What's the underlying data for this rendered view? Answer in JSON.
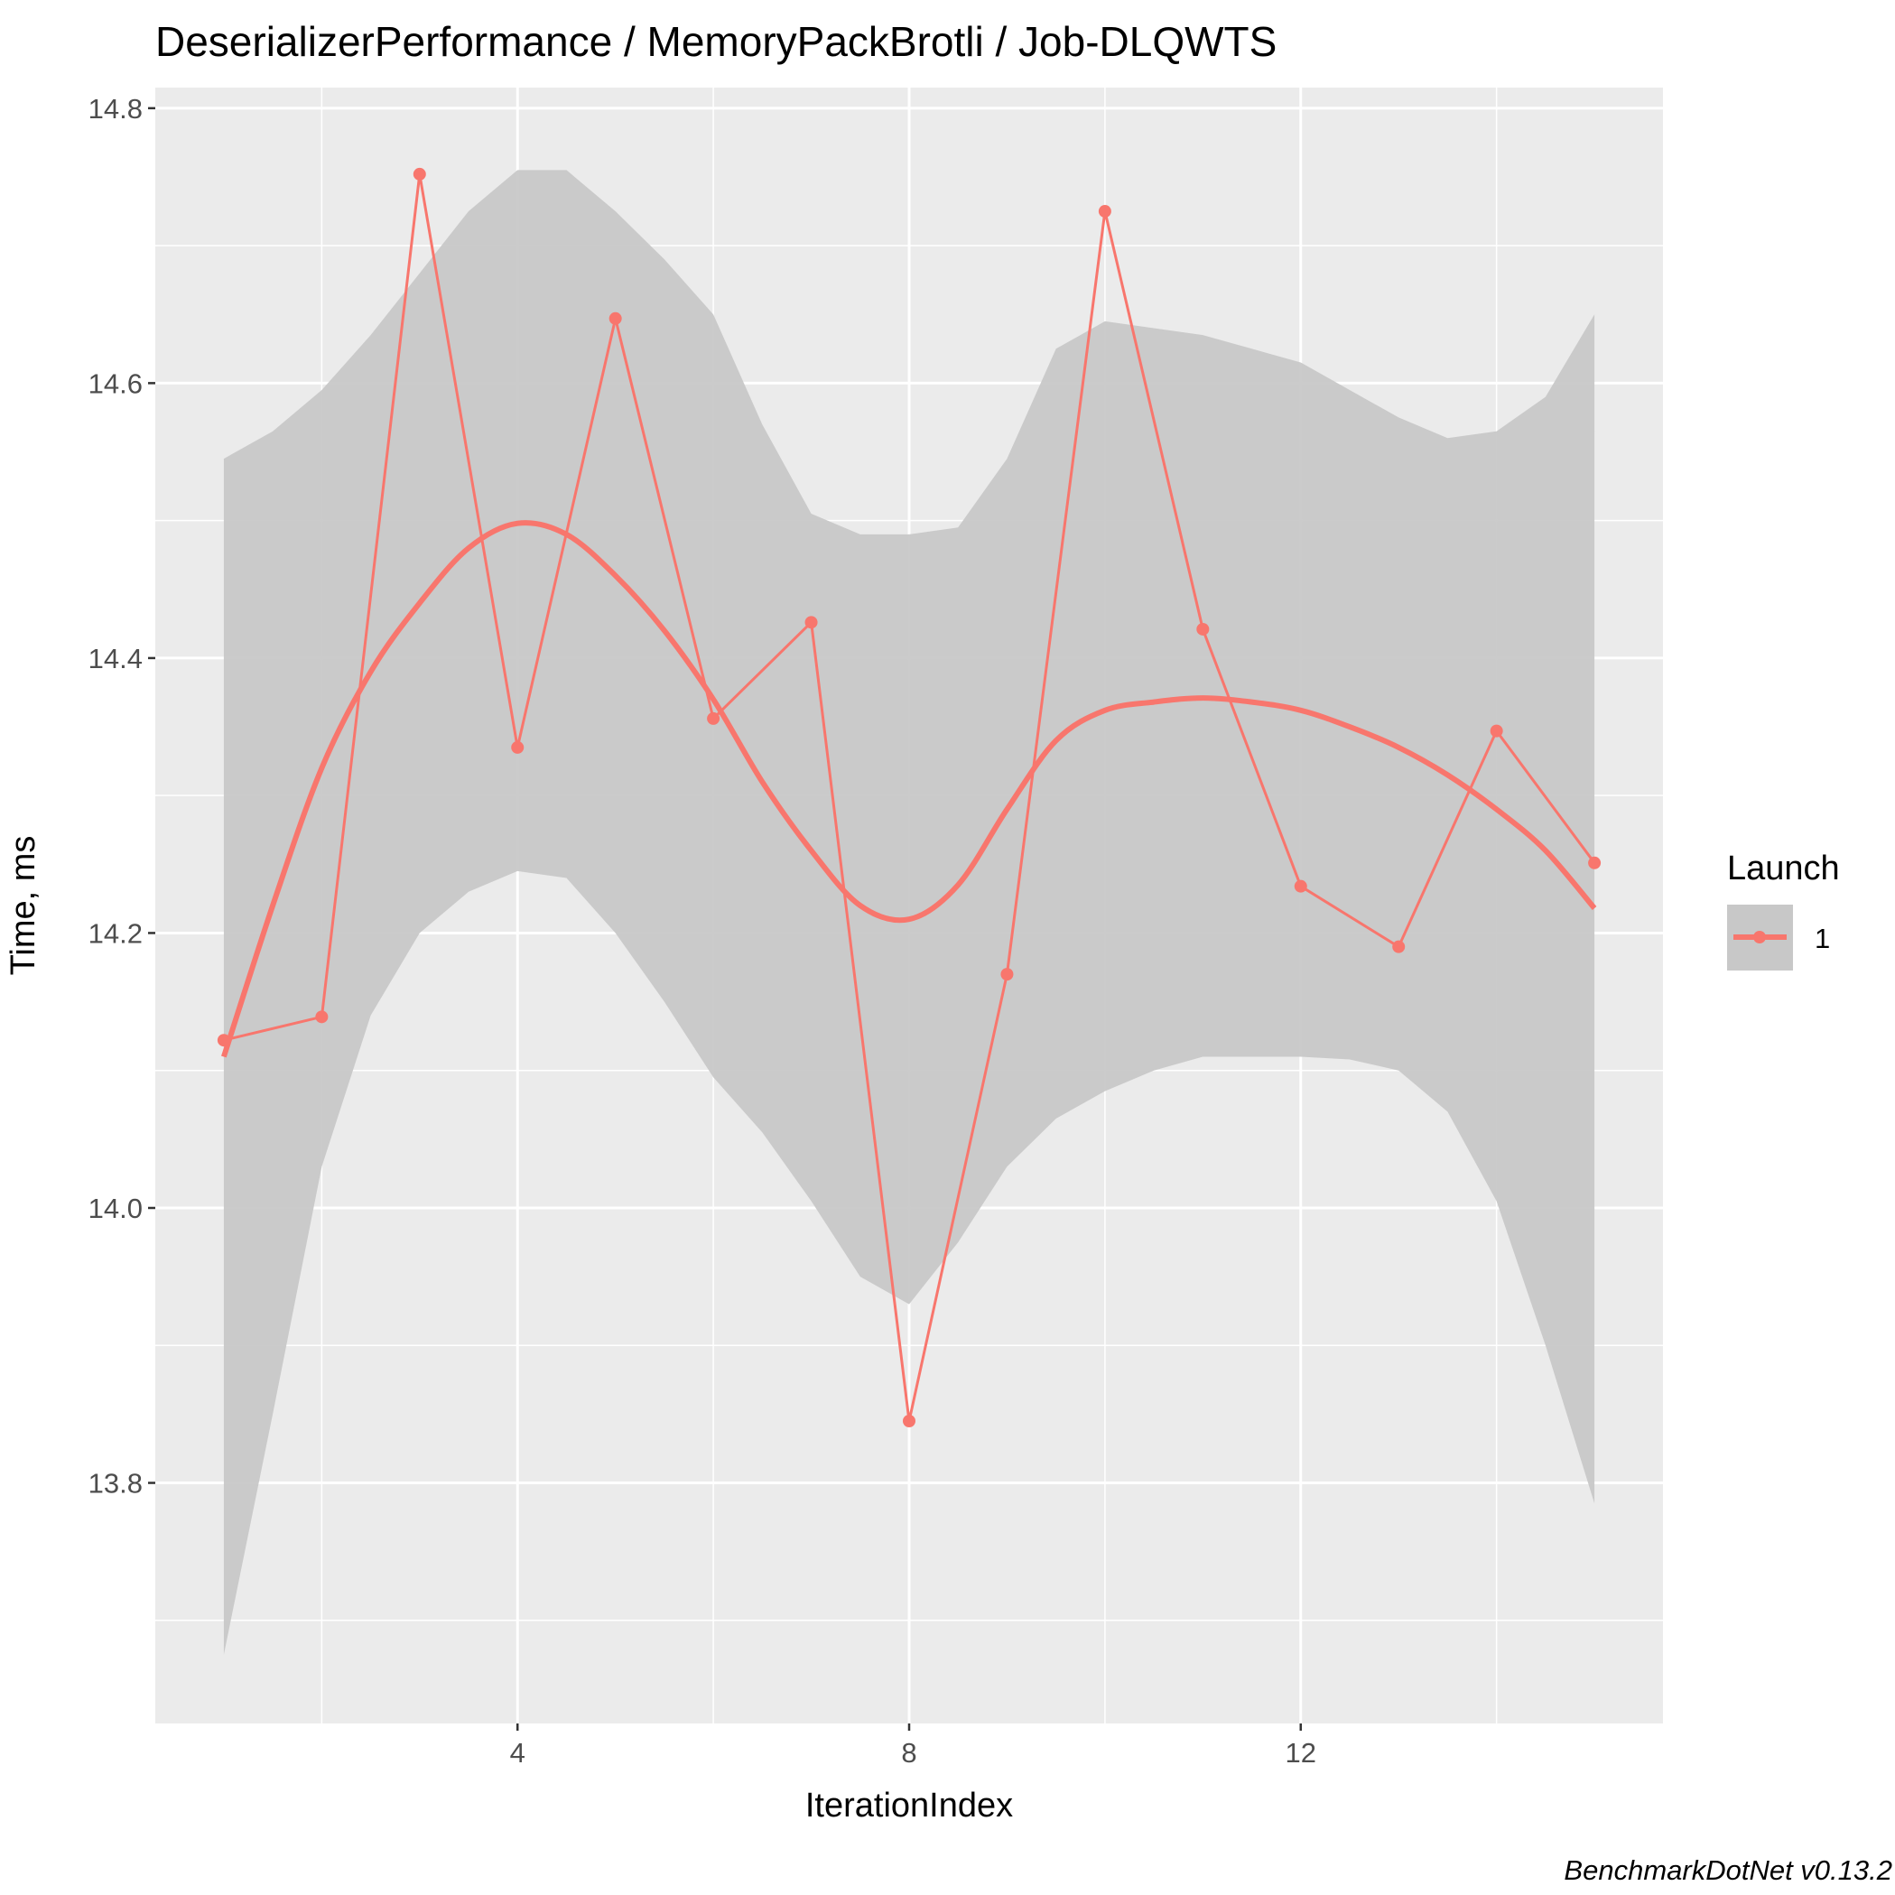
{
  "chart_data": {
    "type": "line",
    "title": "DeserializerPerformance / MemoryPackBrotli / Job-DLQWTS",
    "xlabel": "IterationIndex",
    "ylabel": "Time, ms",
    "caption": "BenchmarkDotNet v0.13.2",
    "xlim": [
      0.3,
      15.7
    ],
    "ylim": [
      13.625,
      14.815
    ],
    "x_ticks": [
      4,
      8,
      12
    ],
    "x_tick_labels": [
      "4",
      "8",
      "12"
    ],
    "y_ticks": [
      13.8,
      14.0,
      14.2,
      14.4,
      14.6,
      14.8
    ],
    "y_tick_labels": [
      "13.8",
      "14.0",
      "14.2",
      "14.4",
      "14.6",
      "14.8"
    ],
    "grid": true,
    "legend": {
      "title": "Launch",
      "position": "right",
      "entries": [
        "1"
      ]
    },
    "colors": {
      "series": "#f8766d",
      "band": "#c8c8c8",
      "panel": "#ebebeb",
      "grid": "#ffffff"
    },
    "series": [
      {
        "name": "1",
        "x": [
          1,
          2,
          3,
          4,
          5,
          6,
          7,
          8,
          9,
          10,
          11,
          12,
          13,
          14,
          15
        ],
        "y": [
          14.122,
          14.139,
          14.752,
          14.335,
          14.647,
          14.356,
          14.426,
          13.845,
          14.17,
          14.725,
          14.421,
          14.234,
          14.19,
          14.347,
          14.251
        ]
      }
    ],
    "smooth": {
      "x": [
        1,
        1.5,
        2,
        2.5,
        3,
        3.5,
        4,
        4.5,
        5,
        5.5,
        6,
        6.5,
        7,
        7.5,
        8,
        8.5,
        9,
        9.5,
        10,
        10.5,
        11,
        11.5,
        12,
        12.5,
        13,
        13.5,
        14,
        14.5,
        15
      ],
      "y": [
        14.11,
        14.22,
        14.32,
        14.39,
        14.44,
        14.48,
        14.498,
        14.49,
        14.46,
        14.42,
        14.37,
        14.31,
        14.26,
        14.22,
        14.21,
        14.235,
        14.29,
        14.34,
        14.362,
        14.368,
        14.371,
        14.368,
        14.362,
        14.35,
        14.335,
        14.315,
        14.29,
        14.26,
        14.218
      ],
      "lower": [
        13.675,
        13.85,
        14.03,
        14.14,
        14.2,
        14.23,
        14.245,
        14.24,
        14.2,
        14.15,
        14.095,
        14.055,
        14.005,
        13.95,
        13.93,
        13.975,
        14.03,
        14.065,
        14.085,
        14.1,
        14.11,
        14.11,
        14.11,
        14.108,
        14.1,
        14.07,
        14.005,
        13.9,
        13.785
      ],
      "upper": [
        14.545,
        14.565,
        14.595,
        14.635,
        14.68,
        14.725,
        14.755,
        14.755,
        14.725,
        14.69,
        14.65,
        14.57,
        14.505,
        14.49,
        14.49,
        14.495,
        14.545,
        14.625,
        14.645,
        14.64,
        14.635,
        14.625,
        14.615,
        14.595,
        14.575,
        14.56,
        14.565,
        14.59,
        14.65
      ]
    }
  }
}
